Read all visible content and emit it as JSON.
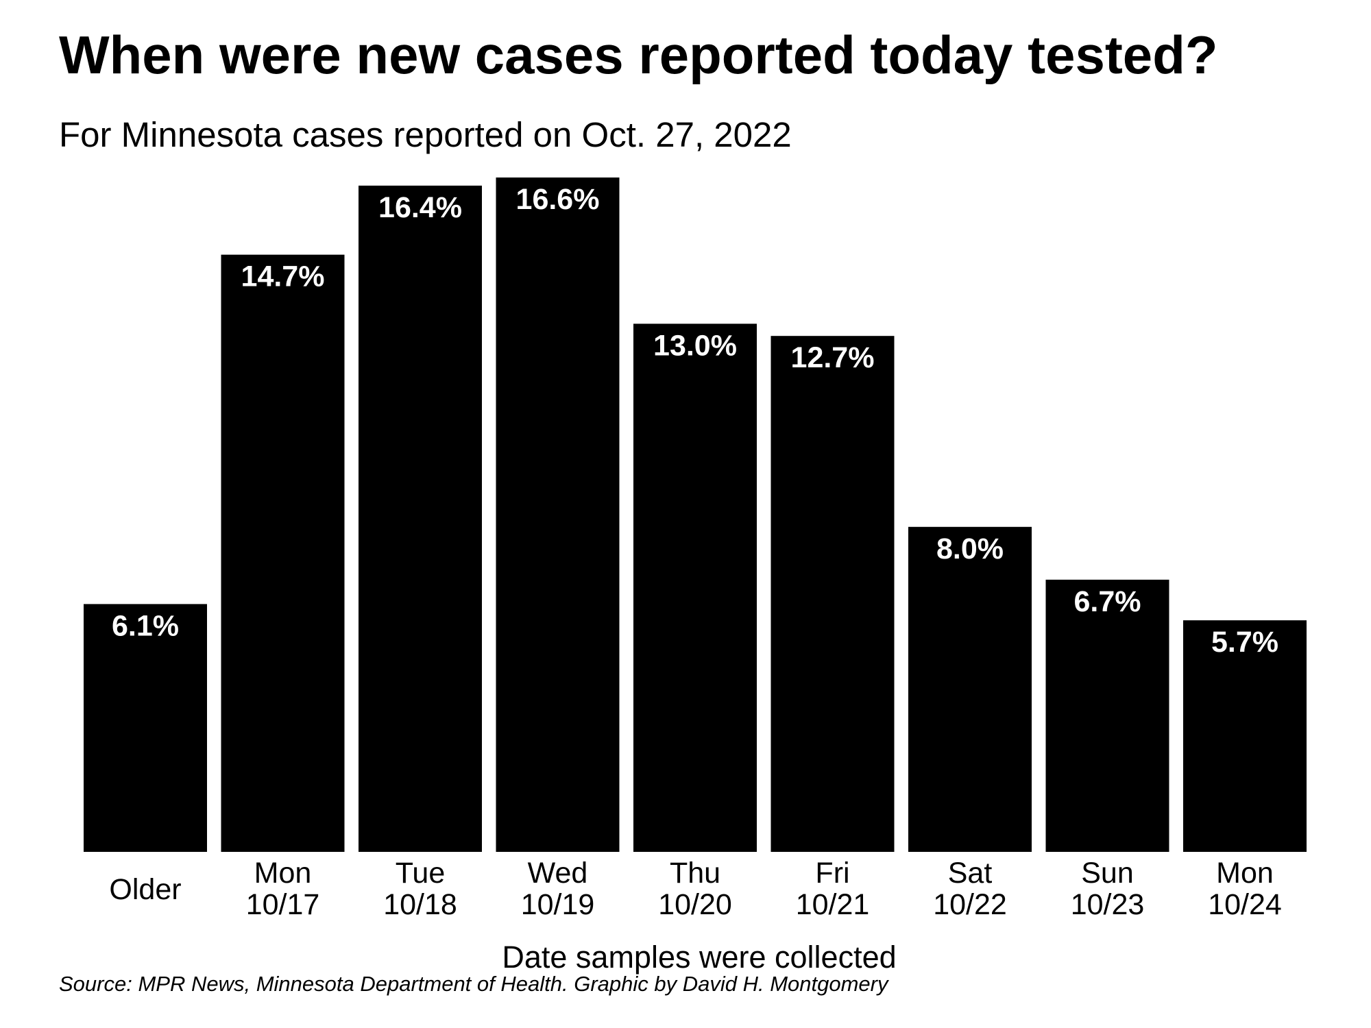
{
  "chart_data": {
    "type": "bar",
    "title": "When were new cases reported today tested?",
    "subtitle": "For Minnesota cases reported on Oct. 27, 2022",
    "xlabel": "Date samples were collected",
    "ylabel": "",
    "categories": [
      [
        "Older"
      ],
      [
        "Mon",
        "10/17"
      ],
      [
        "Tue",
        "10/18"
      ],
      [
        "Wed",
        "10/19"
      ],
      [
        "Thu",
        "10/20"
      ],
      [
        "Fri",
        "10/21"
      ],
      [
        "Sat",
        "10/22"
      ],
      [
        "Sun",
        "10/23"
      ],
      [
        "Mon",
        "10/24"
      ]
    ],
    "values": [
      6.1,
      14.7,
      16.4,
      16.6,
      13.0,
      12.7,
      8.0,
      6.7,
      5.7
    ],
    "value_labels": [
      "6.1%",
      "14.7%",
      "16.4%",
      "16.6%",
      "13.0%",
      "12.7%",
      "8.0%",
      "6.7%",
      "5.7%"
    ],
    "ylim": [
      0,
      16.6
    ],
    "grid": false,
    "legend": "none",
    "bar_color": "#000000",
    "label_color": "#ffffff",
    "source": "Source: MPR News, Minnesota Department of Health. Graphic by David H. Montgomery"
  }
}
